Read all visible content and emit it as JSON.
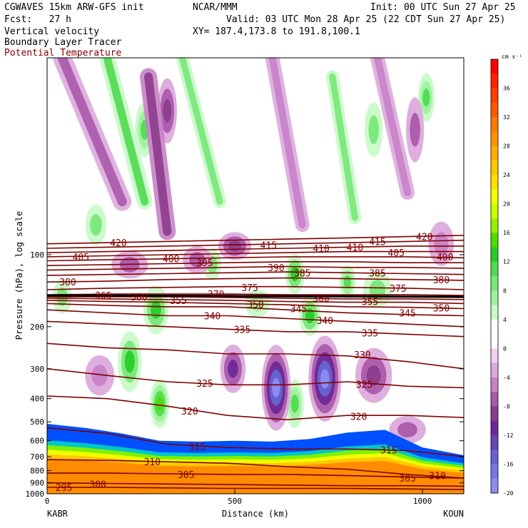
{
  "header": {
    "model": "CGWAVES 15km ARW-GFS init",
    "center": "NCAR/MMM",
    "init": "Init: 00 UTC Sun 27 Apr 25",
    "fcst": "Fcst:   27 h",
    "valid": "Valid: 03 UTC Mon 28 Apr 25 (22 CDT Sun 27 Apr 25)",
    "xy": "XY= 187.4,173.8 to 191.8,100.1",
    "field1": "Vertical velocity",
    "field2": "Boundary Layer Tracer",
    "field3": "Potential Temperature"
  },
  "colors": {
    "theta_contour": "#800000",
    "field3_text": "#800000"
  },
  "chart_data": {
    "type": "heatmap",
    "ylabel": "Pressure (hPa), log scale",
    "xlabel": "Distance (km)",
    "x_start_label": "KABR",
    "x_end_label": "KOUN",
    "xlim": [
      0,
      1110
    ],
    "ylim_hPa": [
      1000,
      15
    ],
    "y_log_scale": true,
    "x_ticks": [
      0,
      500,
      1000
    ],
    "y_ticks": [
      100,
      200,
      300,
      400,
      500,
      600,
      700,
      800,
      900,
      1000
    ],
    "colorbar": {
      "units": "cm s⁻¹",
      "labels": [
        36,
        32,
        28,
        24,
        20,
        16,
        12,
        8,
        4,
        0,
        -4,
        -8,
        -12,
        -16,
        -20
      ],
      "bins": [
        {
          "lo": 38,
          "color": "#ff0000"
        },
        {
          "lo": 36,
          "color": "#ff2000"
        },
        {
          "lo": 34,
          "color": "#ff4000"
        },
        {
          "lo": 32,
          "color": "#ff5a00"
        },
        {
          "lo": 30,
          "color": "#ff7a00"
        },
        {
          "lo": 28,
          "color": "#ff9400"
        },
        {
          "lo": 26,
          "color": "#ffae00"
        },
        {
          "lo": 24,
          "color": "#ffc800"
        },
        {
          "lo": 22,
          "color": "#ffe000"
        },
        {
          "lo": 20,
          "color": "#f4ff00"
        },
        {
          "lo": 18,
          "color": "#c8ff00"
        },
        {
          "lo": 16,
          "color": "#96f000"
        },
        {
          "lo": 14,
          "color": "#50dc00"
        },
        {
          "lo": 12,
          "color": "#28cc28"
        },
        {
          "lo": 10,
          "color": "#50dc50"
        },
        {
          "lo": 8,
          "color": "#78e878"
        },
        {
          "lo": 6,
          "color": "#a0f0a0"
        },
        {
          "lo": 4,
          "color": "#c8fac8"
        },
        {
          "lo": 2,
          "color": "#ffffff"
        },
        {
          "lo": 0,
          "color": "#ffffff"
        },
        {
          "lo": -2,
          "color": "#f0d2f0"
        },
        {
          "lo": -4,
          "color": "#dcaadc"
        },
        {
          "lo": -6,
          "color": "#c882c8"
        },
        {
          "lo": -8,
          "color": "#aa5aaa"
        },
        {
          "lo": -10,
          "color": "#8c3c8c"
        },
        {
          "lo": -12,
          "color": "#6e2896"
        },
        {
          "lo": -14,
          "color": "#6446b4"
        },
        {
          "lo": -16,
          "color": "#6464d2"
        },
        {
          "lo": -18,
          "color": "#7878e6"
        },
        {
          "lo": -20,
          "color": "#8c8cf0"
        }
      ]
    },
    "boundary_layer_colors": [
      "#ff8c00",
      "#ffc800",
      "#f0ff00",
      "#80f000",
      "#00c8c8",
      "#0050ff"
    ],
    "theta_contours": [
      {
        "value": 295,
        "p": [
          940,
          940,
          945,
          950,
          950,
          950,
          955,
          960
        ]
      },
      {
        "value": 300,
        "p": [
          900,
          905,
          910,
          915,
          920,
          925,
          925,
          930
        ]
      },
      {
        "value": 305,
        "p": [
          820,
          820,
          825,
          830,
          830,
          840,
          850,
          860
        ]
      },
      {
        "value": 310,
        "p": [
          720,
          725,
          735,
          745,
          770,
          790,
          830,
          860
        ]
      },
      {
        "value": 315,
        "p": [
          530,
          560,
          620,
          640,
          650,
          650,
          660,
          700
        ]
      },
      {
        "value": 320,
        "p": [
          390,
          400,
          430,
          470,
          490,
          470,
          470,
          480
        ]
      },
      {
        "value": 325,
        "p": [
          300,
          320,
          340,
          350,
          350,
          340,
          355,
          360
        ]
      },
      {
        "value": 330,
        "p": [
          235,
          245,
          250,
          260,
          260,
          265,
          280,
          300
        ]
      },
      {
        "value": 335,
        "p": [
          190,
          195,
          200,
          205,
          210,
          210,
          215,
          220
        ]
      },
      {
        "value": 340,
        "p": [
          170,
          175,
          180,
          180,
          185,
          190,
          195,
          200
        ]
      },
      {
        "value": 345,
        "p": [
          160,
          163,
          165,
          165,
          170,
          175,
          178,
          180
        ]
      },
      {
        "value": 350,
        "p": [
          155,
          157,
          158,
          160,
          162,
          165,
          166,
          168
        ]
      },
      {
        "value": 355,
        "p": [
          152,
          153,
          154,
          155,
          157,
          158,
          158,
          160
        ]
      },
      {
        "value": 360,
        "p": [
          150,
          150,
          150,
          151,
          152,
          153,
          153,
          154
        ]
      },
      {
        "value": 365,
        "p": [
          148,
          148,
          148,
          148,
          149,
          149,
          150,
          151
        ]
      },
      {
        "value": 370,
        "p": [
          147,
          146,
          146,
          146,
          147,
          147,
          147,
          148
        ]
      },
      {
        "value": 375,
        "p": [
          140,
          138,
          137,
          136,
          136,
          137,
          138,
          140
        ]
      },
      {
        "value": 380,
        "p": [
          130,
          129,
          127,
          126,
          125,
          126,
          127,
          128
        ]
      },
      {
        "value": 385,
        "p": [
          122,
          121,
          120,
          119,
          118,
          119,
          120,
          121
        ]
      },
      {
        "value": 390,
        "p": [
          116,
          115,
          114,
          113,
          112,
          113,
          113,
          114
        ]
      },
      {
        "value": 395,
        "p": [
          111,
          110,
          109,
          108,
          107,
          107,
          108,
          108
        ]
      },
      {
        "value": 400,
        "p": [
          106,
          105,
          104,
          103,
          102,
          102,
          102,
          103
        ]
      },
      {
        "value": 405,
        "p": [
          102,
          101,
          100,
          99,
          98,
          97,
          97,
          97
        ]
      },
      {
        "value": 410,
        "p": [
          98,
          97,
          96,
          95,
          94,
          93,
          92,
          92
        ]
      },
      {
        "value": 415,
        "p": [
          94,
          93,
          92,
          91,
          90,
          89,
          88,
          87
        ]
      },
      {
        "value": 420,
        "p": [
          90,
          89,
          88,
          87,
          86,
          85,
          84,
          83
        ]
      }
    ],
    "contour_x_km": [
      0,
      160,
      320,
      480,
      640,
      800,
      960,
      1110
    ],
    "contour_labels": [
      {
        "text": "295",
        "x": 45,
        "p": 940
      },
      {
        "text": "300",
        "x": 135,
        "p": 910
      },
      {
        "text": "305",
        "x": 370,
        "p": 830
      },
      {
        "text": "305",
        "x": 960,
        "p": 860
      },
      {
        "text": "310",
        "x": 280,
        "p": 735
      },
      {
        "text": "310",
        "x": 1040,
        "p": 840
      },
      {
        "text": "315",
        "x": 400,
        "p": 635
      },
      {
        "text": "315",
        "x": 910,
        "p": 655
      },
      {
        "text": "320",
        "x": 380,
        "p": 450
      },
      {
        "text": "320",
        "x": 830,
        "p": 475
      },
      {
        "text": "325",
        "x": 420,
        "p": 345
      },
      {
        "text": "325",
        "x": 845,
        "p": 348
      },
      {
        "text": "330",
        "x": 840,
        "p": 262
      },
      {
        "text": "335",
        "x": 520,
        "p": 205
      },
      {
        "text": "335",
        "x": 860,
        "p": 212
      },
      {
        "text": "340",
        "x": 440,
        "p": 180
      },
      {
        "text": "340",
        "x": 740,
        "p": 188
      },
      {
        "text": "345",
        "x": 670,
        "p": 168
      },
      {
        "text": "345",
        "x": 960,
        "p": 175
      },
      {
        "text": "350",
        "x": 555,
        "p": 161
      },
      {
        "text": "350",
        "x": 1050,
        "p": 167
      },
      {
        "text": "355",
        "x": 350,
        "p": 155
      },
      {
        "text": "355",
        "x": 860,
        "p": 157
      },
      {
        "text": "360",
        "x": 245,
        "p": 150
      },
      {
        "text": "360",
        "x": 730,
        "p": 152
      },
      {
        "text": "365",
        "x": 150,
        "p": 148
      },
      {
        "text": "370",
        "x": 450,
        "p": 146
      },
      {
        "text": "375",
        "x": 540,
        "p": 137
      },
      {
        "text": "375",
        "x": 935,
        "p": 138
      },
      {
        "text": "380",
        "x": 55,
        "p": 130
      },
      {
        "text": "380",
        "x": 1050,
        "p": 127
      },
      {
        "text": "385",
        "x": 680,
        "p": 119
      },
      {
        "text": "385",
        "x": 880,
        "p": 119
      },
      {
        "text": "390",
        "x": 610,
        "p": 113
      },
      {
        "text": "395",
        "x": 420,
        "p": 108
      },
      {
        "text": "400",
        "x": 330,
        "p": 104
      },
      {
        "text": "400",
        "x": 1060,
        "p": 102
      },
      {
        "text": "405",
        "x": 90,
        "p": 102
      },
      {
        "text": "405",
        "x": 930,
        "p": 98
      },
      {
        "text": "410",
        "x": 730,
        "p": 94
      },
      {
        "text": "410",
        "x": 820,
        "p": 93
      },
      {
        "text": "415",
        "x": 590,
        "p": 91
      },
      {
        "text": "415",
        "x": 880,
        "p": 88
      },
      {
        "text": "420",
        "x": 190,
        "p": 89
      },
      {
        "text": "420",
        "x": 1005,
        "p": 84
      }
    ],
    "updrafts": [
      {
        "x": 1010,
        "p": 22,
        "rx": 18,
        "rp": 0.22,
        "v": 10
      },
      {
        "x": 260,
        "p": 30,
        "rx": 22,
        "rp": 0.25,
        "v": 10
      },
      {
        "x": 130,
        "p": 75,
        "rx": 24,
        "rp": 0.18,
        "v": 8
      },
      {
        "x": 40,
        "p": 150,
        "rx": 22,
        "rp": 0.15,
        "v": 9
      },
      {
        "x": 290,
        "p": 170,
        "rx": 30,
        "rp": 0.22,
        "v": 12
      },
      {
        "x": 220,
        "p": 280,
        "rx": 28,
        "rp": 0.28,
        "v": 12
      },
      {
        "x": 300,
        "p": 420,
        "rx": 22,
        "rp": 0.22,
        "v": 14
      },
      {
        "x": 660,
        "p": 120,
        "rx": 22,
        "rp": 0.18,
        "v": 12
      },
      {
        "x": 880,
        "p": 140,
        "rx": 35,
        "rp": 0.16,
        "v": 8
      },
      {
        "x": 560,
        "p": 160,
        "rx": 30,
        "rp": 0.12,
        "v": 7
      },
      {
        "x": 660,
        "p": 420,
        "rx": 20,
        "rp": 0.22,
        "v": 10
      },
      {
        "x": 800,
        "p": 130,
        "rx": 18,
        "rp": 0.15,
        "v": 10
      },
      {
        "x": 700,
        "p": 180,
        "rx": 25,
        "rp": 0.18,
        "v": 12
      },
      {
        "x": 440,
        "p": 110,
        "rx": 20,
        "rp": 0.14,
        "v": 8
      },
      {
        "x": 870,
        "p": 30,
        "rx": 20,
        "rp": 0.25,
        "v": 8
      }
    ],
    "downdrafts": [
      {
        "x": 610,
        "p": 360,
        "rx": 35,
        "rp": 0.4,
        "v": -20
      },
      {
        "x": 740,
        "p": 330,
        "rx": 40,
        "rp": 0.4,
        "v": -20
      },
      {
        "x": 495,
        "p": 300,
        "rx": 30,
        "rp": 0.22,
        "v": -12
      },
      {
        "x": 870,
        "p": 320,
        "rx": 45,
        "rp": 0.25,
        "v": -10
      },
      {
        "x": 500,
        "p": 92,
        "rx": 40,
        "rp": 0.12,
        "v": -10
      },
      {
        "x": 220,
        "p": 110,
        "rx": 45,
        "rp": 0.12,
        "v": -8
      },
      {
        "x": 400,
        "p": 105,
        "rx": 35,
        "rp": 0.12,
        "v": -8
      },
      {
        "x": 320,
        "p": 25,
        "rx": 22,
        "rp": 0.3,
        "v": -10
      },
      {
        "x": 980,
        "p": 30,
        "rx": 20,
        "rp": 0.3,
        "v": -8
      },
      {
        "x": 960,
        "p": 540,
        "rx": 45,
        "rp": 0.12,
        "v": -8
      },
      {
        "x": 140,
        "p": 320,
        "rx": 35,
        "rp": 0.18,
        "v": -6
      },
      {
        "x": 1050,
        "p": 90,
        "rx": 30,
        "rp": 0.2,
        "v": -6
      }
    ],
    "ridge_bands": [
      {
        "x0": 40,
        "p0": 15,
        "x1": 200,
        "p1": 60,
        "w": 26,
        "v": -8
      },
      {
        "x0": 270,
        "p0": 18,
        "x1": 320,
        "p1": 80,
        "w": 24,
        "v": -10
      },
      {
        "x0": 600,
        "p0": 15,
        "x1": 680,
        "p1": 75,
        "w": 20,
        "v": -6
      },
      {
        "x0": 360,
        "p0": 15,
        "x1": 460,
        "p1": 60,
        "w": 18,
        "v": 8
      },
      {
        "x0": 160,
        "p0": 15,
        "x1": 260,
        "p1": 60,
        "w": 22,
        "v": 10
      },
      {
        "x0": 880,
        "p0": 15,
        "x1": 960,
        "p1": 55,
        "w": 20,
        "v": -6
      },
      {
        "x0": 760,
        "p0": 18,
        "x1": 820,
        "p1": 70,
        "w": 18,
        "v": 8
      }
    ],
    "boundary_layer_top_hPa": [
      510,
      530,
      560,
      600,
      605,
      600,
      605,
      590,
      555,
      540,
      640,
      690
    ],
    "bl_x_km": [
      0,
      100,
      200,
      300,
      400,
      500,
      600,
      700,
      800,
      900,
      1000,
      1110
    ],
    "legend_placement": "right"
  }
}
